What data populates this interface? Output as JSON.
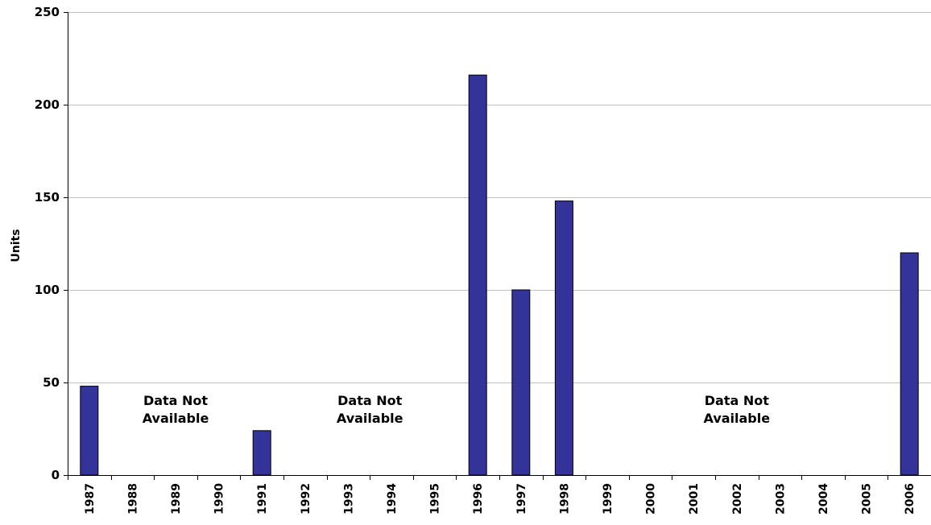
{
  "chart_data": {
    "type": "bar",
    "title": "",
    "xlabel": "",
    "ylabel": "Units",
    "ylim": [
      0,
      250
    ],
    "yticks": [
      "0",
      "50",
      "100",
      "150",
      "200",
      "250"
    ],
    "grid": true,
    "legend": "none",
    "categories": [
      "1987",
      "1988",
      "1989",
      "1990",
      "1991",
      "1992",
      "1993",
      "1994",
      "1995",
      "1996",
      "1997",
      "1998",
      "1999",
      "2000",
      "2001",
      "2002",
      "2003",
      "2004",
      "2005",
      "2006"
    ],
    "values": [
      48,
      0,
      0,
      0,
      24,
      0,
      0,
      0,
      0,
      216,
      100,
      148,
      0,
      0,
      0,
      0,
      0,
      0,
      0,
      120
    ],
    "bar_color": "#333399",
    "annotations": [
      {
        "line1": "Data Not",
        "line2": "Available",
        "span": [
          "1988",
          "1990"
        ]
      },
      {
        "line1": "Data Not",
        "line2": "Available",
        "span": [
          "1992",
          "1995"
        ]
      },
      {
        "line1": "Data Not",
        "line2": "Available",
        "span": [
          "1999",
          "2005"
        ]
      }
    ]
  }
}
